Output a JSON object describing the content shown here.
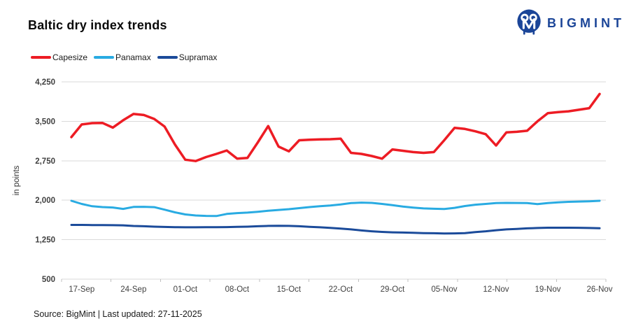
{
  "header": {
    "title": "Baltic dry index trends",
    "brand": "BIGMINT",
    "brand_color": "#1B4598"
  },
  "footer": {
    "text": "Source: BigMint | Last updated: 27-11-2025"
  },
  "chart_data": {
    "type": "line",
    "title": "Baltic dry index trends",
    "xlabel": "",
    "ylabel": "in points",
    "grid": "horizontal",
    "legend_position": "top-left",
    "gridline_color": "#DADADA",
    "axis_text_color": "#404040",
    "y_axis": {
      "min": 500,
      "max": 4250,
      "tick_values": [
        500,
        1250,
        2000,
        2750,
        3500,
        4250
      ],
      "tick_labels": [
        "500",
        "1,250",
        "2,000",
        "2,750",
        "3,500",
        "4,250"
      ]
    },
    "x_tick_labels": [
      "17-Sep",
      "24-Sep",
      "01-Oct",
      "08-Oct",
      "15-Oct",
      "22-Oct",
      "29-Oct",
      "05-Nov",
      "12-Nov",
      "19-Nov",
      "26-Nov"
    ],
    "x_tick_indices": [
      1,
      6,
      11,
      16,
      21,
      26,
      31,
      36,
      41,
      46,
      51
    ],
    "categories": [
      "16-Sep",
      "17-Sep",
      "18-Sep",
      "19-Sep",
      "22-Sep",
      "23-Sep",
      "24-Sep",
      "25-Sep",
      "26-Sep",
      "29-Sep",
      "30-Sep",
      "01-Oct",
      "02-Oct",
      "03-Oct",
      "06-Oct",
      "07-Oct",
      "08-Oct",
      "09-Oct",
      "10-Oct",
      "13-Oct",
      "14-Oct",
      "15-Oct",
      "16-Oct",
      "17-Oct",
      "20-Oct",
      "21-Oct",
      "22-Oct",
      "23-Oct",
      "24-Oct",
      "27-Oct",
      "28-Oct",
      "29-Oct",
      "30-Oct",
      "31-Oct",
      "03-Nov",
      "04-Nov",
      "05-Nov",
      "06-Nov",
      "07-Nov",
      "10-Nov",
      "11-Nov",
      "12-Nov",
      "13-Nov",
      "14-Nov",
      "17-Nov",
      "18-Nov",
      "19-Nov",
      "20-Nov",
      "21-Nov",
      "24-Nov",
      "25-Nov",
      "26-Nov"
    ],
    "series": [
      {
        "name": "Capesize",
        "color": "#ED1C24",
        "stroke_width": 3.5,
        "values": [
          3200,
          3440,
          3465,
          3470,
          3380,
          3520,
          3640,
          3620,
          3545,
          3400,
          3060,
          2770,
          2745,
          2820,
          2880,
          2945,
          2790,
          2805,
          3100,
          3410,
          3020,
          2930,
          3140,
          3150,
          3155,
          3160,
          3170,
          2900,
          2880,
          2840,
          2790,
          2965,
          2940,
          2915,
          2900,
          2915,
          3140,
          3375,
          3355,
          3310,
          3255,
          3040,
          3290,
          3300,
          3320,
          3500,
          3655,
          3675,
          3690,
          3720,
          3750,
          4020
        ]
      },
      {
        "name": "Panamax",
        "color": "#29ABE2",
        "stroke_width": 3,
        "values": [
          1990,
          1930,
          1885,
          1870,
          1862,
          1835,
          1872,
          1875,
          1868,
          1820,
          1770,
          1730,
          1710,
          1702,
          1700,
          1740,
          1755,
          1765,
          1780,
          1800,
          1815,
          1830,
          1850,
          1870,
          1885,
          1900,
          1920,
          1945,
          1955,
          1950,
          1930,
          1905,
          1880,
          1860,
          1845,
          1838,
          1832,
          1855,
          1890,
          1915,
          1930,
          1945,
          1950,
          1948,
          1945,
          1925,
          1945,
          1960,
          1970,
          1975,
          1980,
          1990
        ]
      },
      {
        "name": "Supramax",
        "color": "#1B4B9A",
        "stroke_width": 3,
        "values": [
          1530,
          1530,
          1528,
          1527,
          1525,
          1523,
          1510,
          1505,
          1498,
          1492,
          1488,
          1486,
          1486,
          1487,
          1488,
          1490,
          1493,
          1497,
          1505,
          1512,
          1515,
          1512,
          1505,
          1495,
          1486,
          1475,
          1460,
          1445,
          1425,
          1410,
          1398,
          1390,
          1385,
          1382,
          1375,
          1372,
          1368,
          1370,
          1375,
          1395,
          1410,
          1430,
          1445,
          1455,
          1465,
          1472,
          1477,
          1478,
          1478,
          1476,
          1472,
          1468
        ]
      }
    ]
  }
}
